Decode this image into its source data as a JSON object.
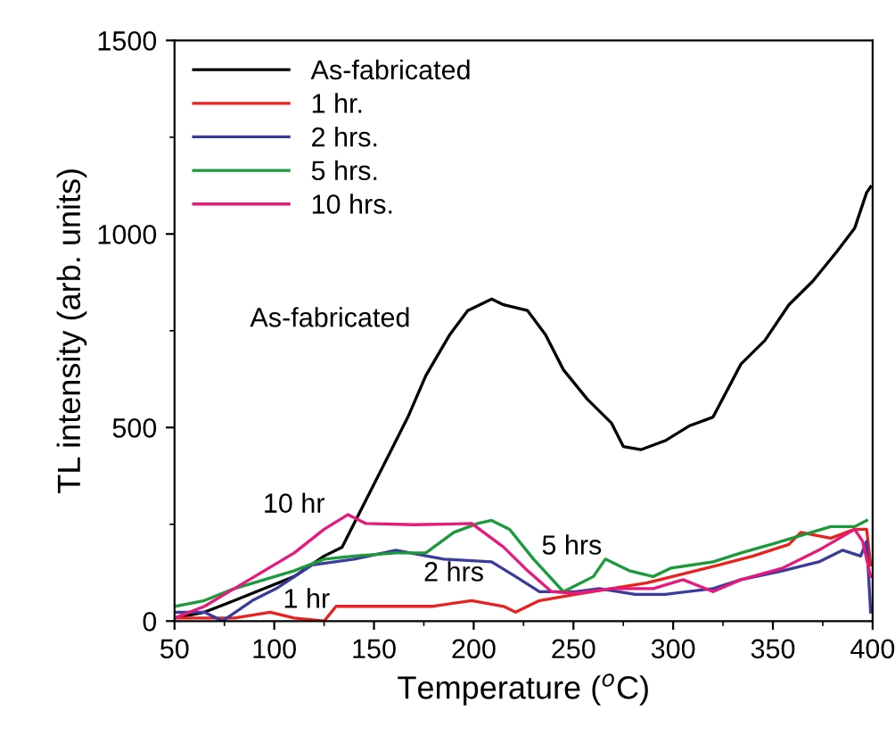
{
  "chart_data": {
    "type": "line",
    "xlabel": "Temperature ($^{o}$C)",
    "ylabel": "TL intensity (arb. units)",
    "xlim": [
      50,
      400
    ],
    "xticks": [
      50,
      100,
      150,
      200,
      250,
      300,
      350,
      400
    ],
    "ylim": [
      0,
      1500
    ],
    "yticks": [
      0,
      500,
      1000,
      1500
    ],
    "grid": false,
    "legend": "top left",
    "marker": "none",
    "line_style": "solid",
    "series": [
      {
        "name": "As-fabricated",
        "color": "#000000",
        "x": [
          50,
          65,
          80,
          95,
          110,
          125,
          134,
          146,
          158,
          167,
          176,
          188,
          197,
          209,
          215,
          227,
          236,
          245,
          257,
          269,
          275,
          284,
          296,
          308,
          320,
          334,
          346,
          358,
          370,
          382,
          391,
          397,
          399
        ],
        "values": [
          8,
          23,
          53,
          84,
          115,
          168,
          191,
          313,
          435,
          527,
          634,
          740,
          802,
          832,
          817,
          802,
          740,
          649,
          573,
          512,
          451,
          443,
          466,
          504,
          527,
          664,
          725,
          817,
          878,
          954,
          1015,
          1107,
          1122
        ]
      },
      {
        "name": "1 hr.",
        "color": "#e8231f",
        "x": [
          50,
          65,
          80,
          98,
          110,
          125,
          131,
          155,
          179,
          199,
          215,
          221,
          233,
          251,
          269,
          287,
          305,
          323,
          340,
          358,
          364,
          379,
          391,
          397,
          399
        ],
        "values": [
          8,
          8,
          8,
          23,
          8,
          0,
          38,
          38,
          38,
          53,
          38,
          23,
          53,
          69,
          84,
          99,
          122,
          145,
          168,
          198,
          229,
          214,
          237,
          237,
          145
        ]
      },
      {
        "name": "2 hrs.",
        "color": "#3b3b9e",
        "x": [
          50,
          65,
          74,
          89,
          101,
          119,
          140,
          161,
          185,
          209,
          221,
          233,
          251,
          263,
          281,
          296,
          320,
          334,
          355,
          373,
          385,
          394,
          397,
          399
        ],
        "values": [
          23,
          23,
          0,
          53,
          84,
          145,
          160,
          183,
          160,
          153,
          115,
          76,
          76,
          84,
          69,
          69,
          84,
          107,
          130,
          153,
          183,
          168,
          206,
          23
        ]
      },
      {
        "name": "5 hrs.",
        "color": "#1a9a3a",
        "x": [
          50,
          65,
          80,
          95,
          110,
          125,
          140,
          161,
          176,
          190,
          202,
          209,
          218,
          230,
          245,
          260,
          266,
          278,
          290,
          299,
          320,
          334,
          349,
          364,
          379,
          391,
          397
        ],
        "values": [
          38,
          53,
          84,
          107,
          130,
          160,
          168,
          176,
          176,
          229,
          252,
          260,
          237,
          160,
          76,
          115,
          160,
          130,
          115,
          137,
          153,
          176,
          198,
          221,
          244,
          244,
          260
        ]
      },
      {
        "name": "10 hrs.",
        "color": "#e8197d",
        "x": [
          50,
          65,
          80,
          95,
          110,
          125,
          137,
          146,
          170,
          199,
          215,
          227,
          239,
          251,
          269,
          290,
          305,
          320,
          334,
          355,
          373,
          391,
          395,
          399
        ],
        "values": [
          8,
          38,
          84,
          130,
          176,
          237,
          275,
          252,
          249,
          252,
          191,
          130,
          76,
          72,
          84,
          84,
          107,
          76,
          107,
          137,
          183,
          237,
          206,
          115
        ]
      }
    ],
    "annotations": [
      "As-fabricated",
      "10 hr",
      "5 hrs",
      "2 hrs",
      "1 hr"
    ]
  }
}
